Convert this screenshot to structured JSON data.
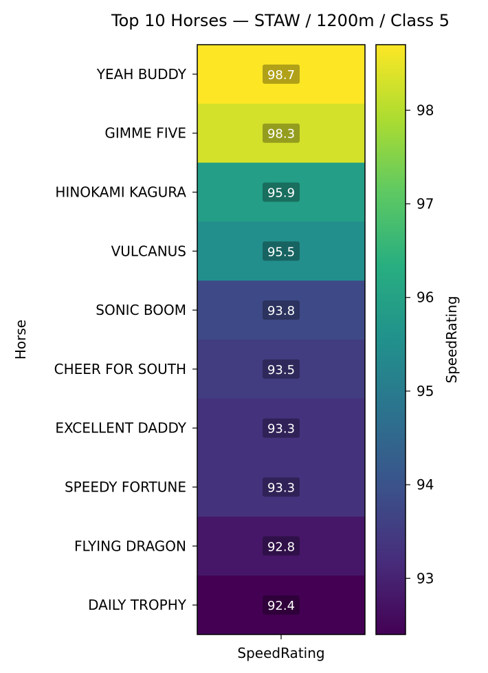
{
  "chart_data": {
    "type": "heatmap",
    "title": "Top 10 Horses — STAW / 1200m / Class 5",
    "xlabel": "SpeedRating",
    "ylabel": "Horse",
    "columns": [
      "SpeedRating"
    ],
    "rows": [
      "YEAH BUDDY",
      "GIMME FIVE",
      "HINOKAMI KAGURA",
      "VULCANUS",
      "SONIC BOOM",
      "CHEER FOR SOUTH",
      "EXCELLENT DADDY",
      "SPEEDY FORTUNE",
      "FLYING DRAGON",
      "DAILY TROPHY"
    ],
    "values": [
      98.7,
      98.3,
      95.9,
      95.5,
      93.8,
      93.5,
      93.3,
      93.3,
      92.8,
      92.4
    ],
    "value_labels": [
      "98.7",
      "98.3",
      "95.9",
      "95.5",
      "93.8",
      "93.5",
      "93.3",
      "93.3",
      "92.8",
      "92.4"
    ],
    "colorbar": {
      "label": "SpeedRating",
      "colormap": "viridis",
      "range": [
        92.4,
        98.7
      ],
      "ticks": [
        93,
        94,
        95,
        96,
        97,
        98
      ],
      "tick_labels": [
        "93",
        "94",
        "95",
        "96",
        "97",
        "98"
      ]
    },
    "grid": false,
    "legend": "none"
  }
}
